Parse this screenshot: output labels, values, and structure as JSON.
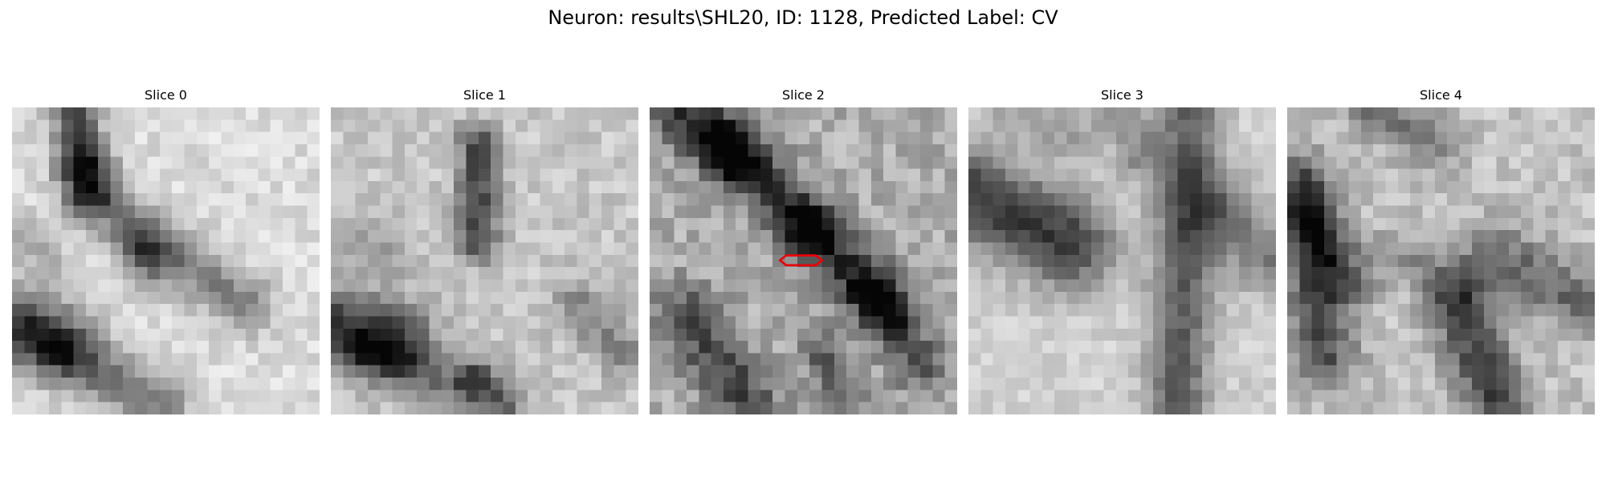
{
  "figure": {
    "title": "Neuron: results\\SHL20, ID: 1128, Predicted Label: CV"
  },
  "panels": [
    {
      "label": "Slice 0",
      "has_marker": false
    },
    {
      "label": "Slice 1",
      "has_marker": false
    },
    {
      "label": "Slice 2",
      "has_marker": true
    },
    {
      "label": "Slice 3",
      "has_marker": false
    },
    {
      "label": "Slice 4",
      "has_marker": false
    }
  ],
  "colors": {
    "marker": "#e8000b",
    "colormap": "gray"
  }
}
